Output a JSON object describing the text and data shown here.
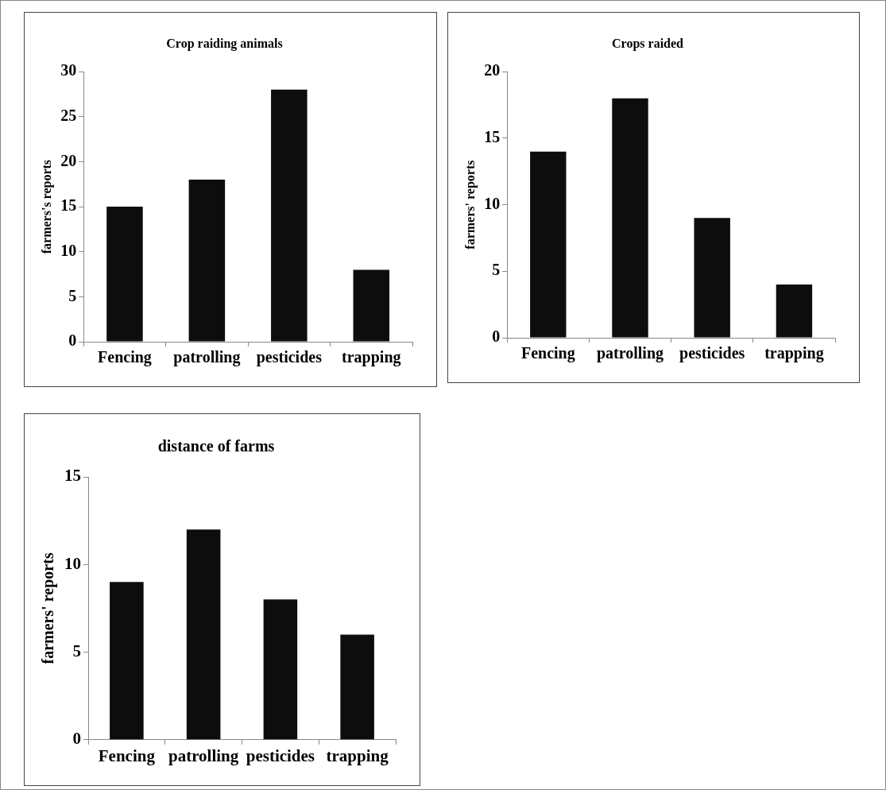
{
  "chart_data": [
    {
      "type": "bar",
      "title": "Crop raiding animals",
      "ylabel": "farmers's reports",
      "categories": [
        "Fencing",
        "patrolling",
        "pesticides",
        "trapping"
      ],
      "values": [
        15,
        18,
        28,
        8
      ],
      "color": "#0d0d0d",
      "ylim": [
        0,
        30
      ],
      "yticks": [
        0,
        5,
        10,
        15,
        20,
        25,
        30
      ],
      "grid": false,
      "legend": false
    },
    {
      "type": "bar",
      "title": "Crops raided",
      "ylabel": "farmers' reports",
      "categories": [
        "Fencing",
        "patrolling",
        "pesticides",
        "trapping"
      ],
      "values": [
        14,
        18,
        9,
        4
      ],
      "color": "#0d0d0d",
      "ylim": [
        0,
        20
      ],
      "yticks": [
        0,
        5,
        10,
        15,
        20
      ],
      "grid": false,
      "legend": false
    },
    {
      "type": "bar",
      "title": "distance of farms",
      "ylabel": "farmers' reports",
      "categories": [
        "Fencing",
        "patrolling",
        "pesticides",
        "trapping"
      ],
      "values": [
        9,
        12,
        8,
        6
      ],
      "color": "#0d0d0d",
      "ylim": [
        0,
        15
      ],
      "yticks": [
        0,
        5,
        10,
        15
      ],
      "grid": false,
      "legend": false
    }
  ]
}
